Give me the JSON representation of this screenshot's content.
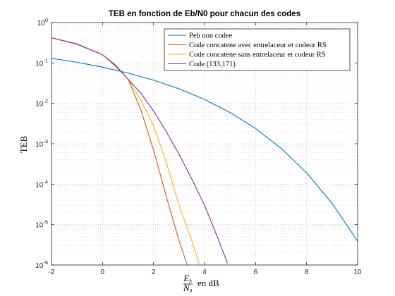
{
  "chart_data": {
    "type": "line",
    "title": "TEB en fonction de Eb/N0 pour chacun des codes",
    "xlabel": {
      "fraction_numerator": "E",
      "numerator_sub": "b",
      "fraction_denominator": "N",
      "denominator_sub": "0",
      "suffix": "en dB"
    },
    "ylabel": "TEB",
    "xlim": [
      -2,
      10
    ],
    "ylim": [
      1e-06,
      1
    ],
    "yscale": "log",
    "grid": "major and minor, dotted",
    "legend_position": "top-right",
    "x_ticks": [
      "-2",
      "0",
      "2",
      "4",
      "6",
      "8",
      "10"
    ],
    "y_ticks": [
      {
        "base": "10",
        "exp": "0"
      },
      {
        "base": "10",
        "exp": "-1"
      },
      {
        "base": "10",
        "exp": "-2"
      },
      {
        "base": "10",
        "exp": "-3"
      },
      {
        "base": "10",
        "exp": "-4"
      },
      {
        "base": "10",
        "exp": "-5"
      },
      {
        "base": "10",
        "exp": "-6"
      }
    ],
    "series": [
      {
        "name": "Peb non codee",
        "color": "#0072BD",
        "x": [
          -2,
          -1,
          0,
          1,
          2,
          3,
          4,
          5,
          6,
          7,
          8,
          9,
          10
        ],
        "y": [
          0.13,
          0.104,
          0.0786,
          0.0563,
          0.0375,
          0.0229,
          0.0125,
          0.00595,
          0.00239,
          0.000773,
          0.000191,
          3.36e-05,
          3.87e-06
        ]
      },
      {
        "name": "Code concatene avec entrelaceur et codeur RS",
        "color": "#D95319",
        "x": [
          -2,
          -1,
          0,
          0.5,
          1,
          1.5,
          2,
          2.5,
          3,
          3.3,
          3.5
        ],
        "y": [
          0.42,
          0.3,
          0.16,
          0.09,
          0.04,
          0.007,
          0.0007,
          5e-05,
          4e-06,
          1.1e-06,
          5e-07
        ]
      },
      {
        "name": "Code concatene sans entrelaceur et codeur RS",
        "color": "#EDB120",
        "x": [
          -2,
          -1,
          0,
          0.5,
          1,
          1.5,
          2,
          2.5,
          3,
          3.5,
          3.8
        ],
        "y": [
          0.42,
          0.3,
          0.16,
          0.085,
          0.04,
          0.012,
          0.0028,
          0.00035,
          3e-05,
          4e-06,
          1e-06
        ]
      },
      {
        "name": "Code (133,171)",
        "color": "#7E2F8E",
        "x": [
          -2,
          -1,
          0,
          0.5,
          1,
          1.5,
          2,
          2.5,
          3,
          3.5,
          4,
          4.5,
          4.9
        ],
        "y": [
          0.42,
          0.29,
          0.16,
          0.085,
          0.04,
          0.018,
          0.0065,
          0.002,
          0.00055,
          0.000135,
          3e-05,
          5e-06,
          1.1e-06
        ]
      }
    ]
  }
}
